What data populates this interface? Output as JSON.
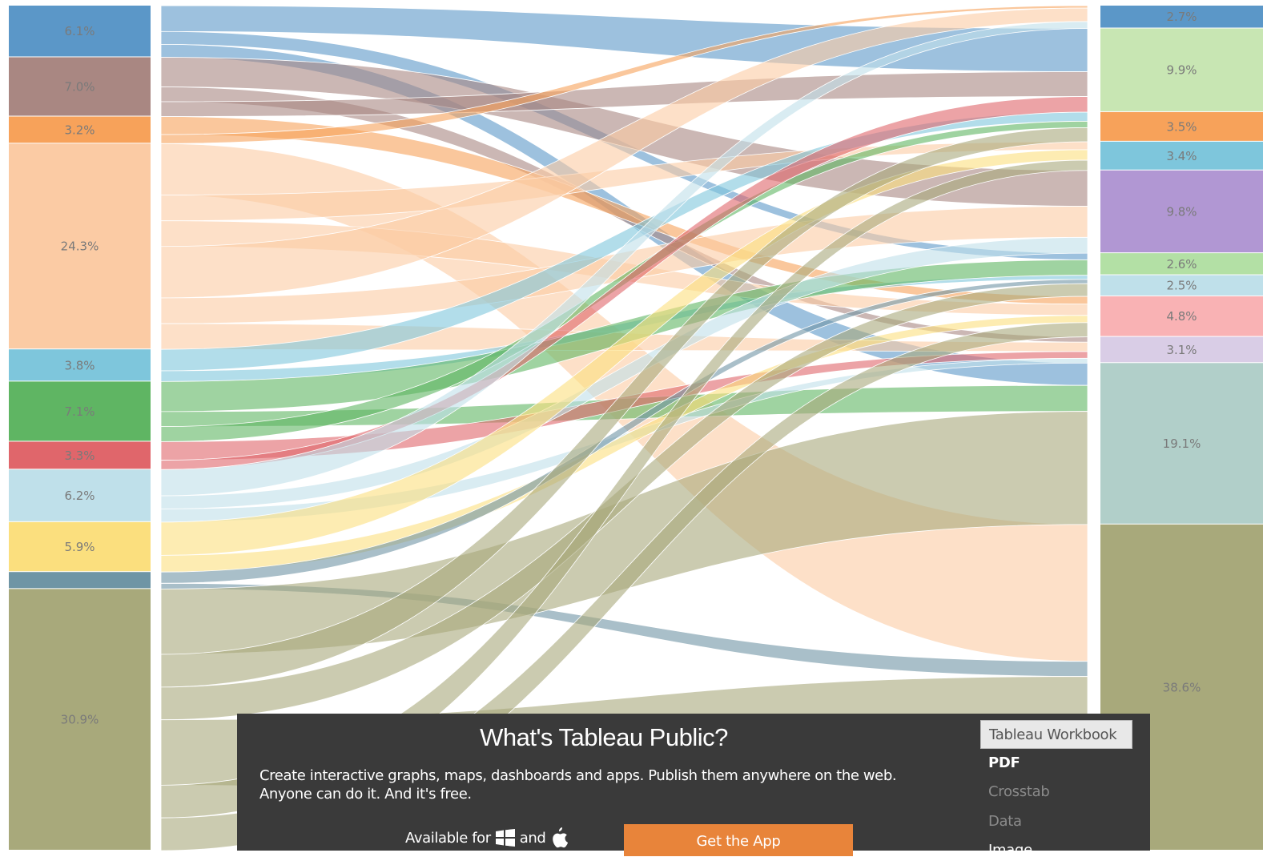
{
  "left_segments": [
    {
      "label": "6.1%",
      "color": "#5b97c8",
      "share": 6.1
    },
    {
      "label": "7.0%",
      "color": "#a98782",
      "share": 7.0
    },
    {
      "label": "3.2%",
      "color": "#f7a25a",
      "share": 3.2
    },
    {
      "label": "24.3%",
      "color": "#fbcba4",
      "share": 24.3
    },
    {
      "label": "3.8%",
      "color": "#7ec6dc",
      "share": 3.8
    },
    {
      "label": "7.1%",
      "color": "#5fb563",
      "share": 7.1
    },
    {
      "label": "3.3%",
      "color": "#e0666b",
      "share": 3.3
    },
    {
      "label": "6.2%",
      "color": "#bfe0ea",
      "share": 6.2
    },
    {
      "label": "5.9%",
      "color": "#fbdf7e",
      "share": 5.9
    },
    {
      "label": "",
      "color": "#6f95a5",
      "share": 2.0
    },
    {
      "label": "30.9%",
      "color": "#a8a97b",
      "share": 30.9
    }
  ],
  "right_segments": [
    {
      "label": "2.7%",
      "color": "#5b97c8",
      "share": 2.7
    },
    {
      "label": "9.9%",
      "color": "#c8e6b3",
      "share": 9.9
    },
    {
      "label": "3.5%",
      "color": "#f7a25a",
      "share": 3.5
    },
    {
      "label": "3.4%",
      "color": "#7ec6dc",
      "share": 3.4
    },
    {
      "label": "9.8%",
      "color": "#b197d3",
      "share": 9.8
    },
    {
      "label": "2.6%",
      "color": "#b3e0a5",
      "share": 2.6
    },
    {
      "label": "2.5%",
      "color": "#bfe0ea",
      "share": 2.5
    },
    {
      "label": "4.8%",
      "color": "#f9b2b4",
      "share": 4.8
    },
    {
      "label": "3.1%",
      "color": "#d9cde6",
      "share": 3.1
    },
    {
      "label": "19.1%",
      "color": "#b1cfc9",
      "share": 19.1
    },
    {
      "label": "38.6%",
      "color": "#a8a97b",
      "share": 38.6
    }
  ],
  "popup": {
    "title": "What's Tableau Public?",
    "description_line1": "Create interactive graphs, maps, dashboards and apps. Publish them anywhere on the web.",
    "description_line2": "Anyone can do it. And it's free.",
    "available_prefix": "Available for",
    "available_and": "and",
    "get_app_label": "Get the App"
  },
  "download_menu": {
    "items": [
      "Tableau Workbook",
      "PDF",
      "Crosstab",
      "Data",
      "Image"
    ],
    "selected": "Tableau Workbook"
  }
}
